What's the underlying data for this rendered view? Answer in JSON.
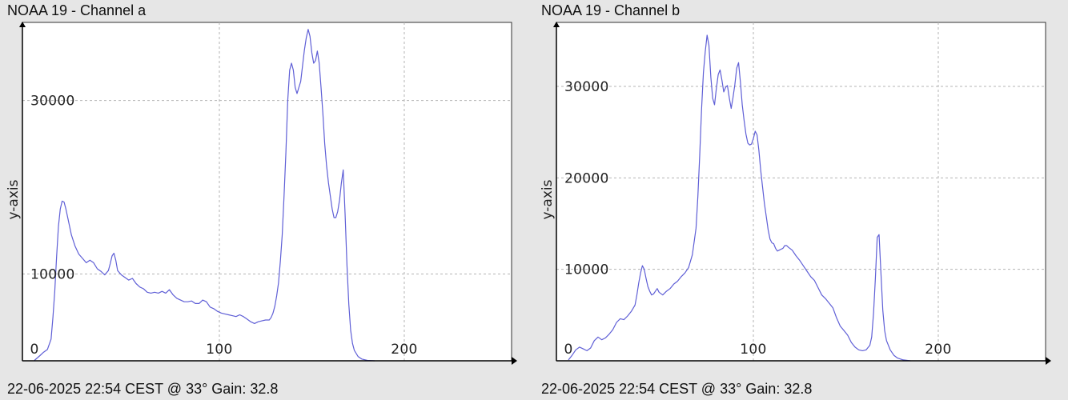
{
  "colors": {
    "line": "#5f5fd6",
    "grid": "#b4b4b4",
    "axis": "#000000",
    "plot_bg": "#ffffff",
    "page_bg": "#e6e6e6"
  },
  "panels": [
    {
      "title": "NOAA 19 - Channel a",
      "footer": "22-06-2025 22:54 CEST @ 33° Gain: 32.8"
    },
    {
      "title": "NOAA 19 - Channel b",
      "footer": "22-06-2025 22:54 CEST @ 33° Gain: 32.8"
    }
  ],
  "chart_data": [
    {
      "type": "line",
      "title": "NOAA 19 - Channel a",
      "xlabel": "",
      "ylabel": "y-axis",
      "xlim": [
        0,
        255
      ],
      "ylim": [
        0,
        39000
      ],
      "x_ticks": [
        0,
        100,
        200
      ],
      "y_ticks": [
        10000,
        30000
      ],
      "grid": true,
      "series": [
        {
          "points": [
            [
              0,
              50
            ],
            [
              3,
              600
            ],
            [
              5,
              1000
            ],
            [
              7,
              1300
            ],
            [
              9,
              2500
            ],
            [
              10,
              5000
            ],
            [
              11,
              8000
            ],
            [
              12,
              12000
            ],
            [
              13,
              15500
            ],
            [
              14,
              17500
            ],
            [
              15,
              18400
            ],
            [
              16,
              18300
            ],
            [
              17,
              17500
            ],
            [
              18,
              16500
            ],
            [
              20,
              14500
            ],
            [
              22,
              13200
            ],
            [
              24,
              12300
            ],
            [
              26,
              11800
            ],
            [
              28,
              11300
            ],
            [
              30,
              11600
            ],
            [
              32,
              11300
            ],
            [
              34,
              10600
            ],
            [
              36,
              10300
            ],
            [
              38,
              9900
            ],
            [
              40,
              10400
            ],
            [
              41,
              11200
            ],
            [
              42,
              12100
            ],
            [
              43,
              12400
            ],
            [
              44,
              11600
            ],
            [
              45,
              10400
            ],
            [
              47,
              9900
            ],
            [
              49,
              9600
            ],
            [
              51,
              9300
            ],
            [
              53,
              9500
            ],
            [
              55,
              8900
            ],
            [
              57,
              8500
            ],
            [
              59,
              8300
            ],
            [
              61,
              7900
            ],
            [
              63,
              7800
            ],
            [
              65,
              7900
            ],
            [
              67,
              7800
            ],
            [
              69,
              8000
            ],
            [
              71,
              7800
            ],
            [
              73,
              8200
            ],
            [
              75,
              7600
            ],
            [
              77,
              7200
            ],
            [
              79,
              7000
            ],
            [
              81,
              6800
            ],
            [
              83,
              6800
            ],
            [
              85,
              6900
            ],
            [
              87,
              6600
            ],
            [
              89,
              6600
            ],
            [
              91,
              7000
            ],
            [
              93,
              6800
            ],
            [
              95,
              6200
            ],
            [
              97,
              6000
            ],
            [
              99,
              5700
            ],
            [
              101,
              5500
            ],
            [
              103,
              5400
            ],
            [
              105,
              5300
            ],
            [
              107,
              5200
            ],
            [
              109,
              5100
            ],
            [
              111,
              5300
            ],
            [
              113,
              5100
            ],
            [
              115,
              4800
            ],
            [
              117,
              4500
            ],
            [
              119,
              4300
            ],
            [
              121,
              4500
            ],
            [
              123,
              4600
            ],
            [
              125,
              4700
            ],
            [
              127,
              4700
            ],
            [
              128,
              5000
            ],
            [
              129,
              5500
            ],
            [
              130,
              6300
            ],
            [
              131,
              7500
            ],
            [
              132,
              9000
            ],
            [
              133,
              11500
            ],
            [
              134,
              14500
            ],
            [
              135,
              19000
            ],
            [
              136,
              24000
            ],
            [
              137,
              30000
            ],
            [
              138,
              33500
            ],
            [
              139,
              34300
            ],
            [
              140,
              33500
            ],
            [
              141,
              31500
            ],
            [
              142,
              30800
            ],
            [
              143,
              31500
            ],
            [
              144,
              32200
            ],
            [
              145,
              34000
            ],
            [
              146,
              35800
            ],
            [
              147,
              37200
            ],
            [
              148,
              38200
            ],
            [
              149,
              37400
            ],
            [
              150,
              35500
            ],
            [
              151,
              34300
            ],
            [
              152,
              34600
            ],
            [
              153,
              35700
            ],
            [
              154,
              34300
            ],
            [
              155,
              31500
            ],
            [
              156,
              28500
            ],
            [
              157,
              25000
            ],
            [
              158,
              22500
            ],
            [
              159,
              20500
            ],
            [
              160,
              19000
            ],
            [
              161,
              17500
            ],
            [
              162,
              16500
            ],
            [
              163,
              16500
            ],
            [
              164,
              17200
            ],
            [
              165,
              18500
            ],
            [
              166,
              20500
            ],
            [
              167,
              22000
            ],
            [
              168,
              17000
            ],
            [
              169,
              11000
            ],
            [
              170,
              6500
            ],
            [
              171,
              3500
            ],
            [
              172,
              2000
            ],
            [
              173,
              1200
            ],
            [
              175,
              500
            ],
            [
              177,
              200
            ],
            [
              180,
              50
            ],
            [
              184,
              0
            ]
          ]
        }
      ]
    },
    {
      "type": "line",
      "title": "NOAA 19 - Channel b",
      "xlabel": "",
      "ylabel": "y-axis",
      "xlim": [
        0,
        255
      ],
      "ylim": [
        0,
        37000
      ],
      "x_ticks": [
        0,
        100,
        200
      ],
      "y_ticks": [
        10000,
        20000,
        30000
      ],
      "grid": true,
      "series": [
        {
          "points": [
            [
              0,
              100
            ],
            [
              2,
              600
            ],
            [
              4,
              1200
            ],
            [
              6,
              1500
            ],
            [
              8,
              1300
            ],
            [
              10,
              1100
            ],
            [
              12,
              1400
            ],
            [
              14,
              2200
            ],
            [
              16,
              2600
            ],
            [
              18,
              2300
            ],
            [
              20,
              2500
            ],
            [
              22,
              2900
            ],
            [
              24,
              3400
            ],
            [
              26,
              4200
            ],
            [
              28,
              4600
            ],
            [
              30,
              4500
            ],
            [
              32,
              4900
            ],
            [
              34,
              5400
            ],
            [
              36,
              6100
            ],
            [
              37,
              7200
            ],
            [
              38,
              8500
            ],
            [
              39,
              9600
            ],
            [
              40,
              10400
            ],
            [
              41,
              10000
            ],
            [
              42,
              9000
            ],
            [
              43,
              8100
            ],
            [
              44,
              7600
            ],
            [
              45,
              7200
            ],
            [
              46,
              7300
            ],
            [
              47,
              7600
            ],
            [
              48,
              7900
            ],
            [
              49,
              7500
            ],
            [
              51,
              7200
            ],
            [
              53,
              7600
            ],
            [
              55,
              7900
            ],
            [
              57,
              8400
            ],
            [
              59,
              8700
            ],
            [
              61,
              9200
            ],
            [
              63,
              9600
            ],
            [
              65,
              10200
            ],
            [
              67,
              11600
            ],
            [
              69,
              14500
            ],
            [
              70,
              18000
            ],
            [
              71,
              22500
            ],
            [
              72,
              27500
            ],
            [
              73,
              31500
            ],
            [
              74,
              33800
            ],
            [
              75,
              35600
            ],
            [
              76,
              34500
            ],
            [
              77,
              31000
            ],
            [
              78,
              28700
            ],
            [
              79,
              28000
            ],
            [
              80,
              29800
            ],
            [
              81,
              31300
            ],
            [
              82,
              31800
            ],
            [
              83,
              30700
            ],
            [
              84,
              29400
            ],
            [
              85,
              29900
            ],
            [
              86,
              30100
            ],
            [
              87,
              28700
            ],
            [
              88,
              27600
            ],
            [
              89,
              28800
            ],
            [
              90,
              30200
            ],
            [
              91,
              32000
            ],
            [
              92,
              32600
            ],
            [
              93,
              30500
            ],
            [
              94,
              28000
            ],
            [
              95,
              26300
            ],
            [
              96,
              24800
            ],
            [
              97,
              23800
            ],
            [
              98,
              23600
            ],
            [
              99,
              23700
            ],
            [
              100,
              24300
            ],
            [
              101,
              25100
            ],
            [
              102,
              24700
            ],
            [
              103,
              23000
            ],
            [
              104,
              20800
            ],
            [
              105,
              19000
            ],
            [
              106,
              17200
            ],
            [
              107,
              15800
            ],
            [
              108,
              14300
            ],
            [
              109,
              13300
            ],
            [
              110,
              12900
            ],
            [
              111,
              12800
            ],
            [
              112,
              12300
            ],
            [
              113,
              12000
            ],
            [
              114,
              12100
            ],
            [
              115,
              12200
            ],
            [
              116,
              12300
            ],
            [
              117,
              12600
            ],
            [
              118,
              12600
            ],
            [
              119,
              12400
            ],
            [
              121,
              12100
            ],
            [
              123,
              11500
            ],
            [
              125,
              11000
            ],
            [
              127,
              10400
            ],
            [
              129,
              9800
            ],
            [
              131,
              9200
            ],
            [
              133,
              8800
            ],
            [
              135,
              8000
            ],
            [
              137,
              7200
            ],
            [
              139,
              6800
            ],
            [
              141,
              6300
            ],
            [
              143,
              5800
            ],
            [
              145,
              4700
            ],
            [
              147,
              3800
            ],
            [
              149,
              3300
            ],
            [
              151,
              2800
            ],
            [
              153,
              2000
            ],
            [
              155,
              1500
            ],
            [
              157,
              1200
            ],
            [
              159,
              1100
            ],
            [
              161,
              1200
            ],
            [
              163,
              1700
            ],
            [
              164,
              2600
            ],
            [
              165,
              5200
            ],
            [
              166,
              9000
            ],
            [
              167,
              13500
            ],
            [
              168,
              13800
            ],
            [
              169,
              9500
            ],
            [
              170,
              5500
            ],
            [
              171,
              3300
            ],
            [
              172,
              2200
            ],
            [
              174,
              1200
            ],
            [
              176,
              600
            ],
            [
              178,
              300
            ],
            [
              181,
              100
            ],
            [
              185,
              0
            ]
          ]
        }
      ]
    }
  ]
}
